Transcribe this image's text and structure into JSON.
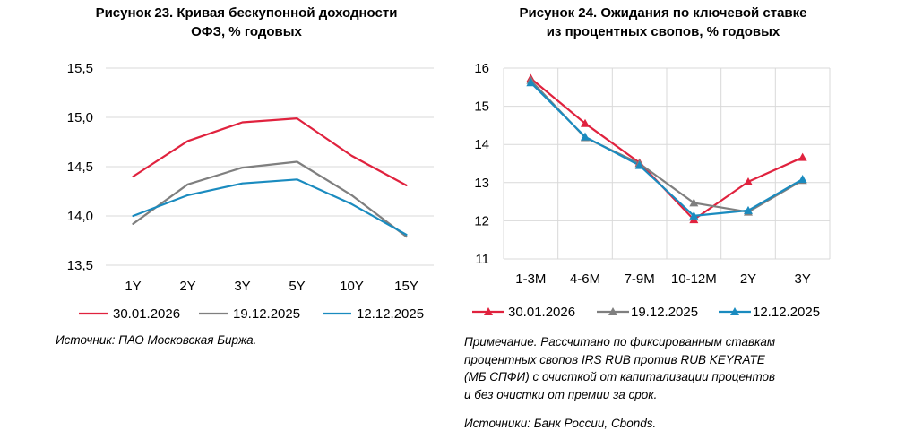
{
  "figure23": {
    "title_line1": "Рисунок 23. Кривая бескупонной доходности",
    "title_line2": "ОФЗ, % годовых",
    "source": "Источник: ПАО Московская Биржа."
  },
  "figure24": {
    "title_line1": "Рисунок 24. Ожидания по ключевой ставке",
    "title_line2": "из процентных свопов, % годовых",
    "note_line1": "Примечание. Рассчитано по фиксированным ставкам",
    "note_line2": "процентных свопов IRS RUB против RUB KEYRATE",
    "note_line3": "(МБ СПФИ) с очисткой от капитализации процентов",
    "note_line4": "и без очистки от премии за срок.",
    "source": "Источники: Банк России, Cbonds."
  },
  "chart_data": [
    {
      "type": "line",
      "title": "Рисунок 23. Кривая бескупонной доходности ОФЗ, % годовых",
      "categories": [
        "1Y",
        "2Y",
        "3Y",
        "5Y",
        "10Y",
        "15Y"
      ],
      "ylim": [
        13.5,
        15.5
      ],
      "yticks": [
        "13,5",
        "14,0",
        "14,5",
        "15,0",
        "15,5"
      ],
      "ytick_values": [
        13.5,
        14.0,
        14.5,
        15.0,
        15.5
      ],
      "grid": true,
      "legend": "bottom",
      "series": [
        {
          "name": "30.01.2026",
          "color": "#e0223e",
          "values": [
            14.4,
            14.76,
            14.95,
            14.99,
            14.61,
            14.31
          ]
        },
        {
          "name": "19.12.2025",
          "color": "#7f7f7f",
          "values": [
            13.92,
            14.32,
            14.49,
            14.55,
            14.21,
            13.79
          ]
        },
        {
          "name": "12.12.2025",
          "color": "#1a8bbf",
          "values": [
            14.0,
            14.21,
            14.33,
            14.37,
            14.12,
            13.81
          ]
        }
      ]
    },
    {
      "type": "line",
      "title": "Рисунок 24. Ожидания по ключевой ставке из процентных свопов, % годовых",
      "categories": [
        "1-3M",
        "4-6M",
        "7-9M",
        "10-12M",
        "2Y",
        "3Y"
      ],
      "ylim": [
        11,
        16
      ],
      "yticks": [
        "11",
        "12",
        "13",
        "14",
        "15",
        "16"
      ],
      "ytick_values": [
        11,
        12,
        13,
        14,
        15,
        16
      ],
      "grid": true,
      "legend": "bottom",
      "series": [
        {
          "name": "30.01.2026",
          "color": "#e0223e",
          "values": [
            15.73,
            14.55,
            13.52,
            12.03,
            13.02,
            13.66
          ]
        },
        {
          "name": "19.12.2025",
          "color": "#7f7f7f",
          "values": [
            15.68,
            14.18,
            13.5,
            12.47,
            12.23,
            13.06
          ]
        },
        {
          "name": "12.12.2025",
          "color": "#1a8bbf",
          "values": [
            15.62,
            14.2,
            13.45,
            12.13,
            12.27,
            13.09
          ]
        }
      ]
    }
  ]
}
